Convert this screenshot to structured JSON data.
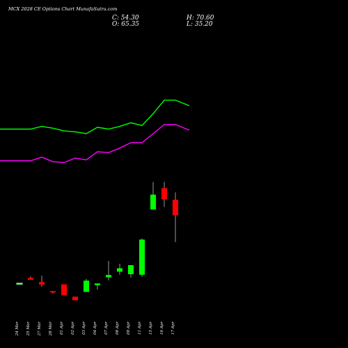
{
  "title": "MCX 2028 CE Options Chart MunafaSutra.com",
  "ohlc": {
    "close": "C: 54.30",
    "open": "O: 65.35",
    "high": "H: 70.60",
    "low": "L: 35.20"
  },
  "colors": {
    "up": "#00ff00",
    "down": "#ff0000",
    "band_upper": "#00ff00",
    "band_lower": "#ff00ff",
    "background": "#000000",
    "wick": "#ffffff"
  },
  "chart_data": {
    "type": "candlestick",
    "title": "MCX 2028 CE Options Chart MunafaSutra.com",
    "ylim": [
      0,
      120
    ],
    "x": [
      "24 Mar",
      "25 Mar",
      "27 Mar",
      "28 Mar",
      "01 Apr",
      "02 Apr",
      "03 Apr",
      "04 Apr",
      "07 Apr",
      "08 Apr",
      "09 Apr",
      "11 Apr",
      "15 Apr",
      "16 Apr",
      "17 Apr"
    ],
    "candles": [
      {
        "open": 6.0,
        "high": 6.0,
        "low": 6.0,
        "close": 6.0
      },
      {
        "open": 9.8,
        "high": 10.8,
        "low": 8.4,
        "close": 8.4
      },
      {
        "open": 6.8,
        "high": 11.4,
        "low": 3.5,
        "close": 5.0
      },
      {
        "open": 0.4,
        "high": 0.4,
        "low": -1.4,
        "close": -0.6
      },
      {
        "open": 5.2,
        "high": 5.2,
        "low": -2.6,
        "close": -2.6
      },
      {
        "open": -3.6,
        "high": -3.6,
        "low": -6.2,
        "close": -6.2
      },
      {
        "open": -0.2,
        "high": 9.0,
        "low": -0.2,
        "close": 7.8
      },
      {
        "open": 4.6,
        "high": 5.8,
        "low": 1.4,
        "close": 5.8
      },
      {
        "open": 10.2,
        "high": 21.8,
        "low": 8.0,
        "close": 11.8
      },
      {
        "open": 14.2,
        "high": 19.8,
        "low": 12.0,
        "close": 16.6
      },
      {
        "open": 12.4,
        "high": 17.8,
        "low": 10.0,
        "close": 18.8
      },
      {
        "open": 12.0,
        "high": 37.8,
        "low": 10.6,
        "close": 37.0
      },
      {
        "open": 58.4,
        "high": 78.0,
        "low": 58.4,
        "close": 69.0
      },
      {
        "open": 73.6,
        "high": 78.0,
        "low": 60.2,
        "close": 65.6
      },
      {
        "open": 65.35,
        "high": 70.6,
        "low": 35.2,
        "close": 54.3
      }
    ],
    "series": [
      {
        "values": [
          165,
          165,
          168,
          166,
          163,
          162,
          160,
          167,
          165,
          168,
          172,
          169,
          182,
          197,
          197
        ]
      },
      {
        "values": [
          130,
          130,
          134,
          129,
          128,
          133,
          131,
          140,
          139,
          144,
          150,
          150,
          160,
          170,
          170
        ]
      }
    ]
  }
}
